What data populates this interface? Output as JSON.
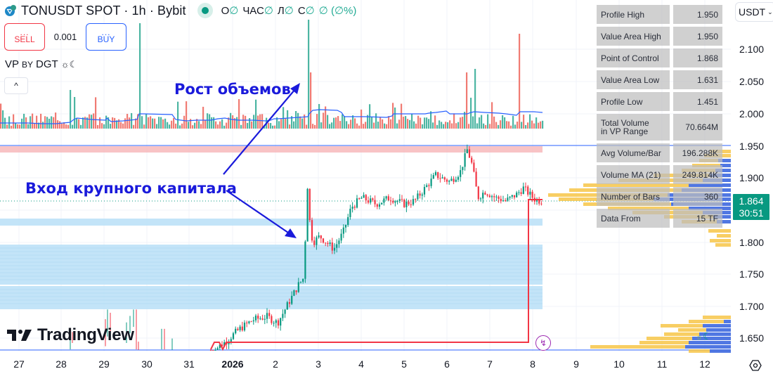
{
  "header": {
    "symbol": "TONUSDT SPOT · 1h · Bybit",
    "ohlc": [
      {
        "label": "О",
        "value": "∅"
      },
      {
        "label": "ЧАС",
        "value": "∅"
      },
      {
        "label": "Л",
        "value": "∅"
      },
      {
        "label": "С",
        "value": "∅"
      },
      {
        "label": "",
        "value": "∅ (∅%)"
      }
    ]
  },
  "trade": {
    "sell_dots": "...",
    "sell_label": "SELL",
    "quantity": "0.001",
    "buy_dots": "...",
    "buy_label": "BUY"
  },
  "indicator": {
    "name_a": "VP",
    "name_b": "BY",
    "name_c": "DGT",
    "theme_icons": "☼☾",
    "collapse_icon": "^"
  },
  "annotations": {
    "volume_growth": "Рост объемов",
    "capital_entry": "Вход крупного капитала"
  },
  "stats_table": [
    {
      "label": "Profile High",
      "value": "1.950"
    },
    {
      "label": "Value Area High",
      "value": "1.950"
    },
    {
      "label": "Point of Control",
      "value": "1.868"
    },
    {
      "label": "Value Area Low",
      "value": "1.631"
    },
    {
      "label": "Profile Low",
      "value": "1.451"
    },
    {
      "label": "Total Volume\nin VP Range",
      "value": "70.664M"
    },
    {
      "label": "Avg Volume/Bar",
      "value": "196.288K"
    },
    {
      "label": "Volume MA (21)",
      "value": "249.814K"
    },
    {
      "label": "Number of Bars",
      "value": "360"
    },
    {
      "label": "Data From",
      "value": "15 TF"
    }
  ],
  "price_axis": {
    "currency": "USDT",
    "ticks": [
      "2.100",
      "2.050",
      "2.000",
      "1.950",
      "1.900",
      "1.800",
      "1.750",
      "1.700",
      "1.650"
    ],
    "last_price": "1.864",
    "countdown": "30:51"
  },
  "time_axis": {
    "ticks": [
      "27",
      "28",
      "29",
      "30",
      "31",
      "2026",
      "2",
      "3",
      "4",
      "5",
      "6",
      "7",
      "8",
      "9",
      "10",
      "11",
      "12"
    ]
  },
  "watermark": "TradingView",
  "colors": {
    "up": "#089981",
    "down": "#f23645",
    "volume_up": "#4db6a3",
    "volume_down": "#f07b73",
    "volume_ma": "#2962ff",
    "vp_yellow": "#f7c548",
    "vp_blue": "#3d6ef0",
    "zone_blue": "#bde1f7",
    "zone_red": "#f7b9bb",
    "annotation": "#1a1adb"
  },
  "chart_data": {
    "type": "candlestick",
    "title": "TONUSDT SPOT · 1h · Bybit",
    "xlabel": "",
    "ylabel": "USDT",
    "ylim": [
      1.63,
      2.13
    ],
    "x_ticks": [
      "27",
      "28",
      "29",
      "30",
      "31",
      "2026",
      "2",
      "3",
      "4",
      "5",
      "6",
      "7",
      "8",
      "9",
      "10",
      "11",
      "12"
    ],
    "y_ticks": [
      1.65,
      1.7,
      1.75,
      1.8,
      1.85,
      1.9,
      1.95,
      2.0,
      2.05,
      2.1
    ],
    "approx_close_by_day": [
      {
        "day": "27",
        "close": null
      },
      {
        "day": "28",
        "close": null
      },
      {
        "day": "29",
        "close": 1.67
      },
      {
        "day": "30",
        "close": 1.63
      },
      {
        "day": "31",
        "close": 1.64
      },
      {
        "day": "2026",
        "close": 1.665
      },
      {
        "day": "2",
        "close": 1.69
      },
      {
        "day": "3",
        "close": 1.82
      },
      {
        "day": "4",
        "close": 1.865
      },
      {
        "day": "5",
        "close": 1.87
      },
      {
        "day": "6",
        "close": 1.895
      },
      {
        "day": "7",
        "close": 1.88
      },
      {
        "day": "8",
        "close": 1.864
      }
    ],
    "key_levels": {
      "profile_high": 1.95,
      "value_area_high": 1.95,
      "point_of_control": 1.868,
      "value_area_low": 1.631,
      "profile_low": 1.451,
      "last_price": 1.864
    },
    "zones": [
      {
        "type": "resistance",
        "from": 1.94,
        "to": 1.95,
        "color": "red"
      },
      {
        "type": "support",
        "from": 1.822,
        "to": 1.832,
        "color": "blue"
      },
      {
        "type": "support",
        "from": 1.733,
        "to": 1.797,
        "color": "blue"
      },
      {
        "type": "support",
        "from": 1.694,
        "to": 1.729,
        "color": "blue"
      }
    ],
    "volume_profile_stats": {
      "total_volume": "70.664M",
      "avg_volume_per_bar": "196.288K",
      "volume_ma_21": "249.814K",
      "number_of_bars": 360,
      "data_from": "15 TF"
    },
    "annotations": [
      "Рост объемов",
      "Вход крупного капитала"
    ]
  }
}
